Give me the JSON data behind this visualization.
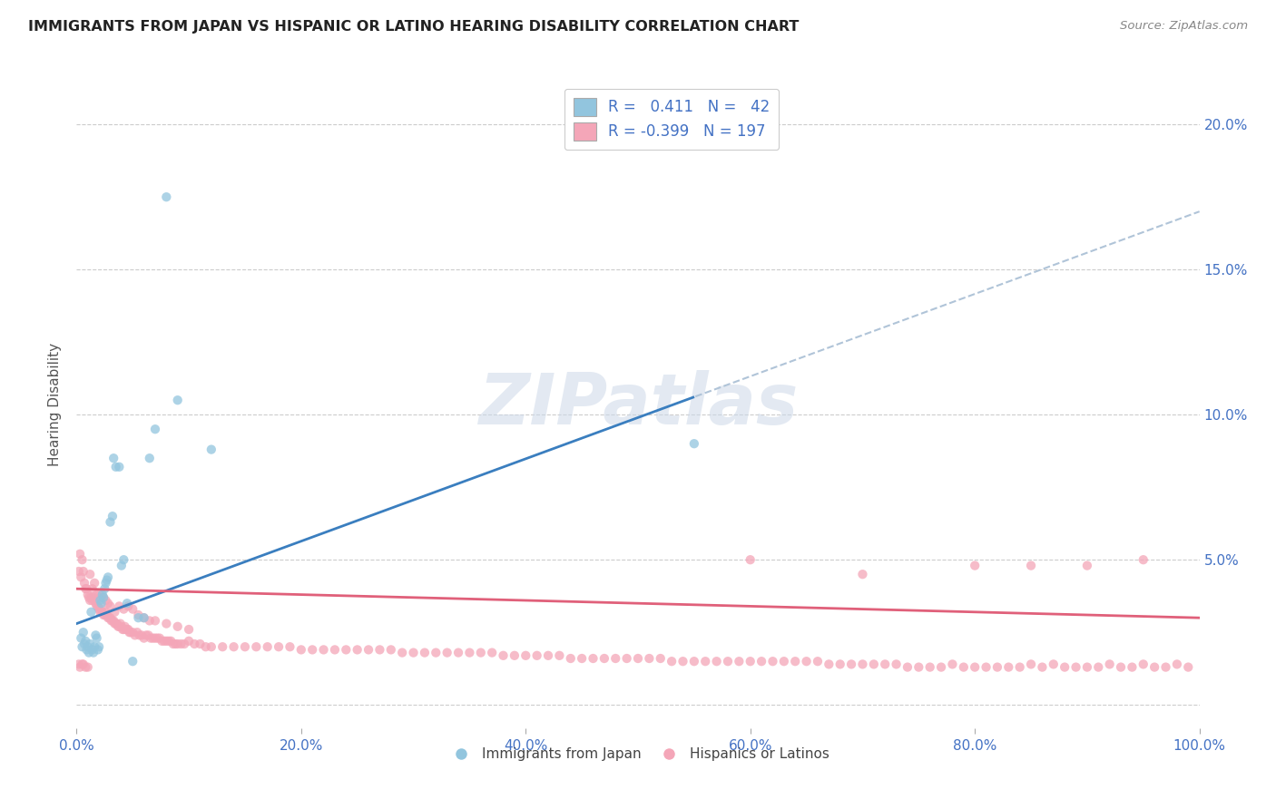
{
  "title": "IMMIGRANTS FROM JAPAN VS HISPANIC OR LATINO HEARING DISABILITY CORRELATION CHART",
  "source": "Source: ZipAtlas.com",
  "ylabel": "Hearing Disability",
  "xlabel": "",
  "xlim": [
    0.0,
    1.0
  ],
  "ylim": [
    -0.008,
    0.215
  ],
  "xticks": [
    0.0,
    0.2,
    0.4,
    0.6,
    0.8,
    1.0
  ],
  "xtick_labels": [
    "0.0%",
    "20.0%",
    "40.0%",
    "60.0%",
    "80.0%",
    "100.0%"
  ],
  "yticks": [
    0.0,
    0.05,
    0.1,
    0.15,
    0.2
  ],
  "ytick_labels_right": [
    "",
    "5.0%",
    "10.0%",
    "15.0%",
    "20.0%"
  ],
  "blue_R": 0.411,
  "blue_N": 42,
  "pink_R": -0.399,
  "pink_N": 197,
  "blue_scatter_color": "#92c5de",
  "pink_scatter_color": "#f4a6b8",
  "blue_line_color": "#3a7ebf",
  "pink_line_color": "#e0607a",
  "dashed_line_color": "#b0c4d8",
  "watermark": "ZIPatlas",
  "legend_label_blue": "Immigrants from Japan",
  "legend_label_pink": "Hispanics or Latinos",
  "title_color": "#222222",
  "axis_tick_color": "#4472c4",
  "background_color": "#ffffff",
  "grid_color": "#cccccc",
  "blue_line_x0": 0.0,
  "blue_line_y0": 0.028,
  "blue_line_x1": 1.0,
  "blue_line_y1": 0.17,
  "blue_line_solid_end": 0.55,
  "pink_line_x0": 0.0,
  "pink_line_y0": 0.04,
  "pink_line_x1": 1.0,
  "pink_line_y1": 0.03,
  "blue_scatter_x": [
    0.004,
    0.005,
    0.006,
    0.007,
    0.008,
    0.009,
    0.01,
    0.011,
    0.012,
    0.013,
    0.014,
    0.015,
    0.016,
    0.017,
    0.018,
    0.019,
    0.02,
    0.021,
    0.022,
    0.023,
    0.024,
    0.025,
    0.026,
    0.027,
    0.028,
    0.03,
    0.032,
    0.033,
    0.035,
    0.038,
    0.04,
    0.042,
    0.045,
    0.05,
    0.055,
    0.06,
    0.065,
    0.07,
    0.08,
    0.09,
    0.12,
    0.55
  ],
  "blue_scatter_y": [
    0.023,
    0.02,
    0.025,
    0.021,
    0.022,
    0.019,
    0.02,
    0.018,
    0.021,
    0.032,
    0.019,
    0.018,
    0.02,
    0.024,
    0.023,
    0.019,
    0.02,
    0.036,
    0.035,
    0.038,
    0.037,
    0.04,
    0.042,
    0.043,
    0.044,
    0.063,
    0.065,
    0.085,
    0.082,
    0.082,
    0.048,
    0.05,
    0.035,
    0.015,
    0.03,
    0.03,
    0.085,
    0.095,
    0.175,
    0.105,
    0.088,
    0.09
  ],
  "pink_scatter_x": [
    0.002,
    0.003,
    0.004,
    0.005,
    0.006,
    0.007,
    0.008,
    0.009,
    0.01,
    0.011,
    0.012,
    0.013,
    0.014,
    0.015,
    0.016,
    0.017,
    0.018,
    0.019,
    0.02,
    0.021,
    0.022,
    0.023,
    0.024,
    0.025,
    0.026,
    0.027,
    0.028,
    0.029,
    0.03,
    0.031,
    0.032,
    0.033,
    0.034,
    0.035,
    0.036,
    0.037,
    0.038,
    0.039,
    0.04,
    0.041,
    0.042,
    0.043,
    0.044,
    0.045,
    0.046,
    0.047,
    0.048,
    0.05,
    0.052,
    0.054,
    0.056,
    0.058,
    0.06,
    0.062,
    0.064,
    0.066,
    0.068,
    0.07,
    0.072,
    0.074,
    0.076,
    0.078,
    0.08,
    0.082,
    0.084,
    0.086,
    0.088,
    0.09,
    0.093,
    0.096,
    0.1,
    0.105,
    0.11,
    0.115,
    0.12,
    0.13,
    0.14,
    0.15,
    0.16,
    0.17,
    0.18,
    0.19,
    0.2,
    0.21,
    0.22,
    0.23,
    0.24,
    0.25,
    0.26,
    0.27,
    0.28,
    0.29,
    0.3,
    0.31,
    0.32,
    0.33,
    0.34,
    0.35,
    0.36,
    0.37,
    0.38,
    0.39,
    0.4,
    0.41,
    0.42,
    0.43,
    0.44,
    0.45,
    0.46,
    0.47,
    0.48,
    0.49,
    0.5,
    0.51,
    0.52,
    0.53,
    0.54,
    0.55,
    0.56,
    0.57,
    0.58,
    0.59,
    0.6,
    0.61,
    0.62,
    0.63,
    0.64,
    0.65,
    0.66,
    0.67,
    0.68,
    0.69,
    0.7,
    0.71,
    0.72,
    0.73,
    0.74,
    0.75,
    0.76,
    0.77,
    0.78,
    0.79,
    0.8,
    0.81,
    0.82,
    0.83,
    0.84,
    0.85,
    0.86,
    0.87,
    0.88,
    0.89,
    0.9,
    0.91,
    0.92,
    0.93,
    0.94,
    0.95,
    0.96,
    0.97,
    0.98,
    0.99,
    0.002,
    0.003,
    0.005,
    0.006,
    0.008,
    0.01,
    0.012,
    0.014,
    0.016,
    0.018,
    0.02,
    0.022,
    0.024,
    0.026,
    0.028,
    0.03,
    0.034,
    0.038,
    0.042,
    0.046,
    0.05,
    0.055,
    0.06,
    0.065,
    0.07,
    0.08,
    0.09,
    0.1,
    0.6,
    0.7,
    0.8,
    0.85,
    0.9,
    0.95
  ],
  "pink_scatter_y": [
    0.046,
    0.052,
    0.044,
    0.05,
    0.046,
    0.042,
    0.04,
    0.04,
    0.038,
    0.037,
    0.036,
    0.037,
    0.036,
    0.037,
    0.036,
    0.035,
    0.034,
    0.034,
    0.033,
    0.032,
    0.033,
    0.032,
    0.031,
    0.031,
    0.032,
    0.031,
    0.03,
    0.03,
    0.03,
    0.029,
    0.029,
    0.029,
    0.028,
    0.028,
    0.028,
    0.027,
    0.027,
    0.028,
    0.027,
    0.026,
    0.026,
    0.027,
    0.026,
    0.026,
    0.026,
    0.025,
    0.025,
    0.025,
    0.024,
    0.025,
    0.024,
    0.024,
    0.023,
    0.024,
    0.024,
    0.023,
    0.023,
    0.023,
    0.023,
    0.023,
    0.022,
    0.022,
    0.022,
    0.022,
    0.022,
    0.021,
    0.021,
    0.021,
    0.021,
    0.021,
    0.022,
    0.021,
    0.021,
    0.02,
    0.02,
    0.02,
    0.02,
    0.02,
    0.02,
    0.02,
    0.02,
    0.02,
    0.019,
    0.019,
    0.019,
    0.019,
    0.019,
    0.019,
    0.019,
    0.019,
    0.019,
    0.018,
    0.018,
    0.018,
    0.018,
    0.018,
    0.018,
    0.018,
    0.018,
    0.018,
    0.017,
    0.017,
    0.017,
    0.017,
    0.017,
    0.017,
    0.016,
    0.016,
    0.016,
    0.016,
    0.016,
    0.016,
    0.016,
    0.016,
    0.016,
    0.015,
    0.015,
    0.015,
    0.015,
    0.015,
    0.015,
    0.015,
    0.015,
    0.015,
    0.015,
    0.015,
    0.015,
    0.015,
    0.015,
    0.014,
    0.014,
    0.014,
    0.014,
    0.014,
    0.014,
    0.014,
    0.013,
    0.013,
    0.013,
    0.013,
    0.014,
    0.013,
    0.013,
    0.013,
    0.013,
    0.013,
    0.013,
    0.014,
    0.013,
    0.014,
    0.013,
    0.013,
    0.013,
    0.013,
    0.014,
    0.013,
    0.013,
    0.014,
    0.013,
    0.013,
    0.014,
    0.013,
    0.014,
    0.013,
    0.014,
    0.014,
    0.013,
    0.013,
    0.045,
    0.04,
    0.042,
    0.038,
    0.038,
    0.037,
    0.037,
    0.036,
    0.035,
    0.034,
    0.032,
    0.034,
    0.033,
    0.034,
    0.033,
    0.031,
    0.03,
    0.029,
    0.029,
    0.028,
    0.027,
    0.026,
    0.05,
    0.045,
    0.048,
    0.048,
    0.048,
    0.05
  ]
}
